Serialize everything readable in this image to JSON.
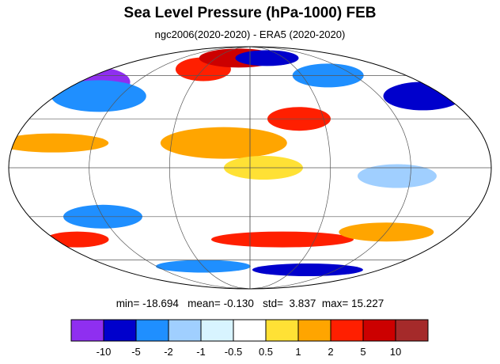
{
  "title": "Sea Level Pressure (hPa-1000) FEB",
  "subtitle": "ngc2006(2020-2020) - ERA5 (2020-2020)",
  "stats": {
    "min_label": "min=",
    "min": "-18.694",
    "mean_label": "mean=",
    "mean": "-0.130",
    "std_label": "std=",
    "std": "3.837",
    "max_label": "max=",
    "max": "15.227"
  },
  "colorbar": {
    "colors": [
      "#8f2ff0",
      "#0000cc",
      "#1f8fff",
      "#a0cfff",
      "#d8f4ff",
      "#ffffff",
      "#ffe135",
      "#ffa500",
      "#ff1f00",
      "#cc0000",
      "#a52a2a"
    ],
    "labels": [
      "-10",
      "-5",
      "-2",
      "-1",
      "-0.5",
      "0.5",
      "1",
      "2",
      "5",
      "10"
    ]
  },
  "map": {
    "projection": "Mollweide",
    "background_color": "#ffffff",
    "blobs": [
      {
        "lon": -160,
        "lat": 55,
        "rx": 40,
        "ry": 18,
        "color": "#8f2ff0"
      },
      {
        "lon": -140,
        "lat": 45,
        "rx": 60,
        "ry": 20,
        "color": "#1f8fff"
      },
      {
        "lon": -60,
        "lat": 65,
        "rx": 35,
        "ry": 15,
        "color": "#ff1f00"
      },
      {
        "lon": -20,
        "lat": 75,
        "rx": 50,
        "ry": 12,
        "color": "#cc0000"
      },
      {
        "lon": 30,
        "lat": 75,
        "rx": 40,
        "ry": 10,
        "color": "#0000cc"
      },
      {
        "lon": 90,
        "lat": 60,
        "rx": 45,
        "ry": 15,
        "color": "#1f8fff"
      },
      {
        "lon": 160,
        "lat": 45,
        "rx": 50,
        "ry": 18,
        "color": "#0000cc"
      },
      {
        "lon": -150,
        "lat": 15,
        "rx": 70,
        "ry": 12,
        "color": "#ffa500"
      },
      {
        "lon": -20,
        "lat": 15,
        "rx": 80,
        "ry": 20,
        "color": "#ffa500"
      },
      {
        "lon": 40,
        "lat": 30,
        "rx": 40,
        "ry": 15,
        "color": "#ff1f00"
      },
      {
        "lon": 10,
        "lat": 0,
        "rx": 50,
        "ry": 15,
        "color": "#ffe135"
      },
      {
        "lon": 110,
        "lat": -5,
        "rx": 50,
        "ry": 15,
        "color": "#a0cfff"
      },
      {
        "lon": -120,
        "lat": -30,
        "rx": 50,
        "ry": 15,
        "color": "#1f8fff"
      },
      {
        "lon": -160,
        "lat": -45,
        "rx": 40,
        "ry": 10,
        "color": "#ff1f00"
      },
      {
        "lon": 30,
        "lat": -45,
        "rx": 90,
        "ry": 10,
        "color": "#ff1f00"
      },
      {
        "lon": 120,
        "lat": -40,
        "rx": 60,
        "ry": 12,
        "color": "#ffa500"
      },
      {
        "lon": -60,
        "lat": -65,
        "rx": 60,
        "ry": 8,
        "color": "#1f8fff"
      },
      {
        "lon": 80,
        "lat": -68,
        "rx": 70,
        "ry": 8,
        "color": "#0000cc"
      }
    ]
  }
}
